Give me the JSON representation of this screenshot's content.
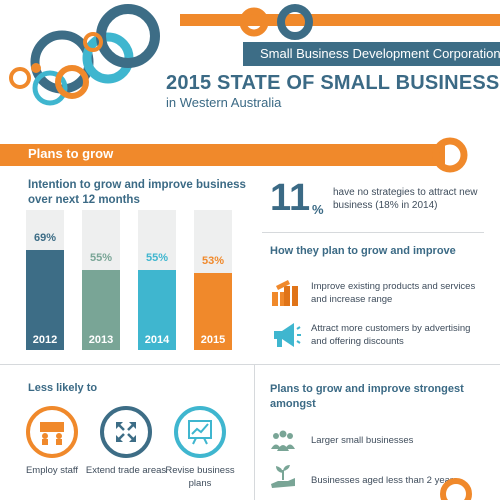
{
  "header": {
    "organization": "Small Business Development Corporation",
    "title": "2015 STATE OF SMALL BUSINESS",
    "subtitle": "in Western Australia"
  },
  "section": {
    "title": "Plans to grow"
  },
  "intention": {
    "heading": "Intention to grow and improve business over next 12 months",
    "bars": [
      {
        "year": "2012",
        "label": "69%",
        "value": 69,
        "color": "#3d6d86"
      },
      {
        "year": "2013",
        "label": "55%",
        "value": 55,
        "color": "#79a596"
      },
      {
        "year": "2014",
        "label": "55%",
        "value": 55,
        "color": "#3fb6cf"
      },
      {
        "year": "2015",
        "label": "53%",
        "value": 53,
        "color": "#f0892b"
      }
    ]
  },
  "stat": {
    "number": "11",
    "unit": "%",
    "text": "have no strategies to attract new business (18% in 2014)"
  },
  "how": {
    "heading": "How they plan to grow and improve",
    "items": [
      {
        "text": "Improve existing products and services and increase range",
        "icon": "gift-boxes-icon"
      },
      {
        "text": "Attract more customers  by advertising and offering discounts",
        "icon": "megaphone-icon"
      }
    ]
  },
  "less": {
    "heading": "Less likely to",
    "items": [
      {
        "label": "Employ staff",
        "icon": "staff-icon",
        "color": "#f0892b"
      },
      {
        "label": "Extend trade areas",
        "icon": "expand-arrows-icon",
        "color": "#3d6d86"
      },
      {
        "label": "Revise business plans",
        "icon": "chart-board-icon",
        "color": "#3fb6cf"
      }
    ]
  },
  "strong": {
    "heading": "Plans to grow and improve strongest amongst",
    "items": [
      {
        "text": "Larger small businesses",
        "icon": "group-people-icon"
      },
      {
        "text": "Businesses aged less than 2 years",
        "icon": "sprout-hand-icon"
      }
    ]
  },
  "colors": {
    "orange": "#f0892b",
    "navy": "#3d6d86",
    "teal": "#79a596",
    "cyan": "#3fb6cf"
  }
}
